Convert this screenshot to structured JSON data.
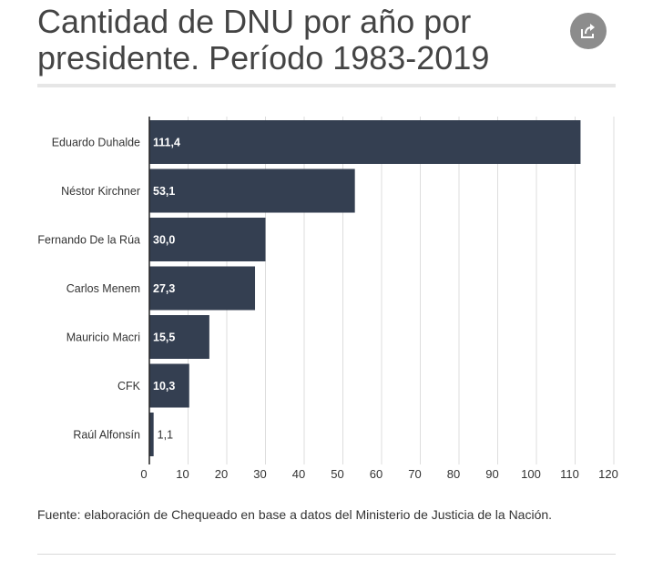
{
  "title": "Cantidad de DNU por año por presidente. Período 1983-2019",
  "share_icon": "share-icon",
  "source": "Fuente: elaboración de Chequeado en base a datos del Ministerio de Justicia de la Nación.",
  "colors": {
    "bar": "#343f51",
    "grid": "#dddddd",
    "axis": "#222222",
    "text": "#333333"
  },
  "chart_data": {
    "type": "bar",
    "orientation": "horizontal",
    "title": "Cantidad de DNU por año por presidente. Período 1983-2019",
    "categories": [
      "Eduardo Duhalde",
      "Néstor Kirchner",
      "Fernando De la Rúa",
      "Carlos Menem",
      "Mauricio Macri",
      "CFK",
      "Raúl Alfonsín"
    ],
    "values": [
      111.4,
      53.1,
      30.0,
      27.3,
      15.5,
      10.3,
      1.1
    ],
    "data_labels": [
      "111,4",
      "53,1",
      "30,0",
      "27,3",
      "15,5",
      "10,3",
      "1,1"
    ],
    "xlim": [
      0,
      120
    ],
    "xticks": [
      0,
      10,
      20,
      30,
      40,
      50,
      60,
      70,
      80,
      90,
      100,
      110,
      120
    ],
    "grid": true,
    "legend": "none",
    "xlabel": "",
    "ylabel": ""
  }
}
